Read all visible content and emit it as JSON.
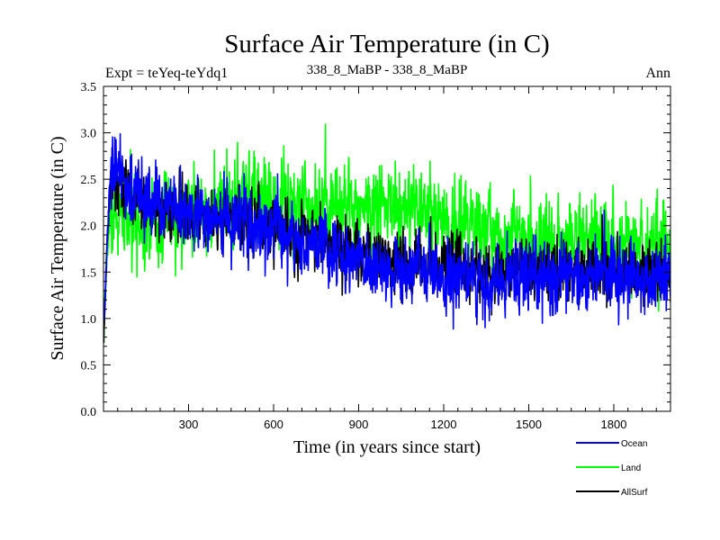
{
  "chart_data": {
    "type": "line",
    "title": "Surface Air Temperature (in C)",
    "subtitle_left": "Expt = teYeq-teYdq1",
    "subtitle_center": "338_8_MaBP - 338_8_MaBP",
    "subtitle_right": "Ann",
    "xlabel": "Time (in years since start)",
    "ylabel": "Surface Air Temperature (in C)",
    "xlim": [
      0,
      2000
    ],
    "ylim": [
      0.0,
      3.5
    ],
    "x_ticks": [
      300,
      600,
      900,
      1200,
      1500,
      1800
    ],
    "x_tick_labels": [
      "300",
      "600",
      "900",
      "1200",
      "1500",
      "1800"
    ],
    "y_ticks": [
      0.0,
      0.5,
      1.0,
      1.5,
      2.0,
      2.5,
      3.0,
      3.5
    ],
    "y_tick_labels": [
      "0.0",
      "0.5",
      "1.0",
      "1.5",
      "2.0",
      "2.5",
      "3.0",
      "3.5"
    ],
    "grid": false,
    "legend_position": "bottom-right",
    "x": [
      0,
      10,
      20,
      30,
      40,
      60,
      80,
      100,
      150,
      200,
      250,
      300,
      350,
      400,
      450,
      500,
      550,
      600,
      650,
      700,
      750,
      800,
      850,
      900,
      950,
      1000,
      1050,
      1100,
      1150,
      1200,
      1250,
      1300,
      1350,
      1400,
      1450,
      1500,
      1550,
      1600,
      1650,
      1700,
      1750,
      1800,
      1850,
      1900,
      1950,
      2000
    ],
    "series": [
      {
        "name": "Ocean",
        "color": "#0000ff",
        "values": [
          0.8,
          1.6,
          2.3,
          2.6,
          2.6,
          2.55,
          2.45,
          2.35,
          2.3,
          2.2,
          2.15,
          2.1,
          2.1,
          2.05,
          2.05,
          2.0,
          2.0,
          1.95,
          1.85,
          1.8,
          1.8,
          1.75,
          1.7,
          1.62,
          1.6,
          1.55,
          1.5,
          1.5,
          1.5,
          1.48,
          1.45,
          1.45,
          1.42,
          1.4,
          1.45,
          1.45,
          1.42,
          1.45,
          1.45,
          1.45,
          1.45,
          1.43,
          1.45,
          1.42,
          1.42,
          1.4
        ],
        "noise": 0.17
      },
      {
        "name": "Land",
        "color": "#00ff00",
        "values": [
          0.5,
          1.6,
          2.0,
          2.1,
          2.1,
          2.05,
          2.05,
          2.05,
          2.05,
          2.05,
          2.1,
          2.1,
          2.15,
          2.15,
          2.2,
          2.25,
          2.3,
          2.3,
          2.3,
          2.3,
          2.25,
          2.25,
          2.25,
          2.2,
          2.2,
          2.2,
          2.15,
          2.1,
          2.1,
          2.05,
          2.0,
          2.0,
          1.95,
          1.92,
          1.9,
          1.88,
          1.88,
          1.85,
          1.85,
          1.85,
          1.85,
          1.82,
          1.82,
          1.8,
          1.8,
          1.8
        ],
        "noise": 0.21
      },
      {
        "name": "AllSurf",
        "color": "#000000",
        "values": [
          0.75,
          1.6,
          2.2,
          2.5,
          2.5,
          2.45,
          2.35,
          2.3,
          2.25,
          2.17,
          2.13,
          2.1,
          2.1,
          2.07,
          2.07,
          2.05,
          2.05,
          2.0,
          1.92,
          1.88,
          1.87,
          1.83,
          1.8,
          1.73,
          1.7,
          1.66,
          1.62,
          1.6,
          1.6,
          1.58,
          1.55,
          1.55,
          1.52,
          1.5,
          1.53,
          1.53,
          1.51,
          1.53,
          1.53,
          1.53,
          1.53,
          1.51,
          1.52,
          1.5,
          1.5,
          1.48
        ],
        "noise": 0.15
      }
    ]
  }
}
